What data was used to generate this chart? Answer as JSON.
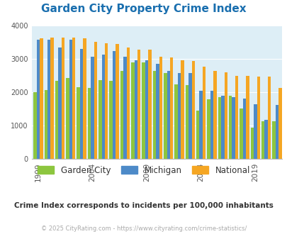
{
  "title": "Garden City Property Crime Index",
  "title_color": "#1a6faf",
  "subtitle": "Crime Index corresponds to incidents per 100,000 inhabitants",
  "footer": "© 2025 CityRating.com - https://www.cityrating.com/crime-statistics/",
  "footer_color": "#aaaaaa",
  "subtitle_color": "#333333",
  "years": [
    1999,
    2000,
    2001,
    2002,
    2003,
    2004,
    2005,
    2006,
    2007,
    2008,
    2009,
    2010,
    2011,
    2012,
    2013,
    2014,
    2015,
    2016,
    2017,
    2018,
    2019,
    2020,
    2021
  ],
  "garden_city": [
    2000,
    2075,
    2350,
    2425,
    2150,
    2125,
    2375,
    2350,
    2650,
    2900,
    2900,
    2650,
    2575,
    2250,
    2225,
    1450,
    1800,
    1850,
    1900,
    1525,
    950,
    1125,
    1125
  ],
  "michigan": [
    3575,
    3575,
    3350,
    3575,
    3300,
    3075,
    3125,
    3250,
    3075,
    2975,
    2975,
    2850,
    2650,
    2575,
    2575,
    2050,
    2050,
    1900,
    1850,
    1825,
    1650,
    1175,
    1625
  ],
  "national": [
    3625,
    3650,
    3650,
    3650,
    3625,
    3525,
    3475,
    3450,
    3350,
    3275,
    3275,
    3075,
    3050,
    2960,
    2935,
    2775,
    2650,
    2600,
    2500,
    2500,
    2475,
    2475,
    2125
  ],
  "bar_colors": [
    "#8dc63f",
    "#4d8ac8",
    "#f5a623"
  ],
  "bg_color": "#ddeef6",
  "ylim": [
    0,
    4000
  ],
  "yticks": [
    0,
    1000,
    2000,
    3000,
    4000
  ],
  "xtick_labels": [
    "1999",
    "2004",
    "2009",
    "2014",
    "2019"
  ],
  "xtick_positions": [
    1999,
    2004,
    2009,
    2014,
    2019
  ],
  "legend_labels": [
    "Garden City",
    "Michigan",
    "National"
  ],
  "figsize": [
    4.06,
    3.3
  ],
  "dpi": 100
}
